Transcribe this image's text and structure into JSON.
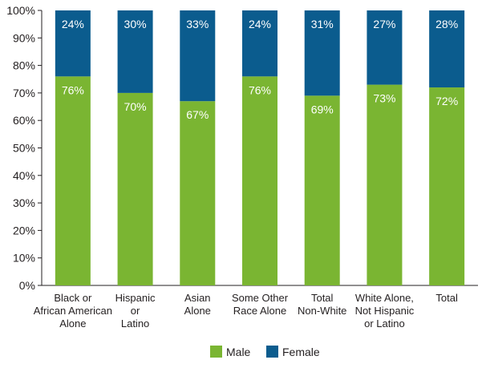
{
  "chart_data": {
    "type": "bar",
    "stacked": true,
    "categories": [
      [
        "Black or",
        "African American",
        "Alone"
      ],
      [
        "Hispanic",
        "or",
        "Latino"
      ],
      [
        "Asian",
        "Alone"
      ],
      [
        "Some Other",
        "Race Alone"
      ],
      [
        "Total",
        "Non-White"
      ],
      [
        "White Alone,",
        "Not Hispanic",
        "or Latino"
      ],
      [
        "Total"
      ]
    ],
    "series": [
      {
        "name": "Male",
        "color": "#7ab532",
        "values": [
          76,
          70,
          67,
          76,
          69,
          73,
          72
        ],
        "labels": [
          "76%",
          "70%",
          "67%",
          "76%",
          "69%",
          "73%",
          "72%"
        ]
      },
      {
        "name": "Female",
        "color": "#0b5c8e",
        "values": [
          24,
          30,
          33,
          24,
          31,
          27,
          28
        ],
        "labels": [
          "24%",
          "30%",
          "33%",
          "24%",
          "31%",
          "27%",
          "28%"
        ]
      }
    ],
    "y_ticks": [
      "0%",
      "10%",
      "20%",
      "30%",
      "40%",
      "50%",
      "60%",
      "70%",
      "80%",
      "90%",
      "100%"
    ],
    "ylim": [
      0,
      100
    ],
    "grid": false,
    "legend": "bottom-center"
  }
}
